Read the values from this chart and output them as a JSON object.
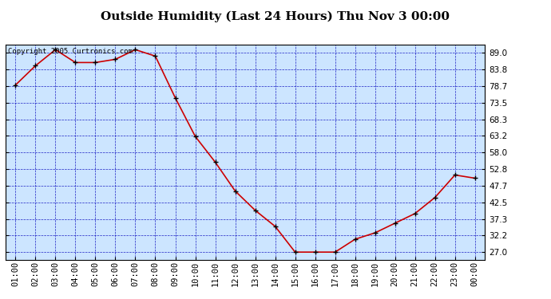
{
  "title": "Outside Humidity (Last 24 Hours) Thu Nov 3 00:00",
  "copyright": "Copyright 2005 Curtronics.com",
  "x_labels": [
    "01:00",
    "02:00",
    "03:00",
    "04:00",
    "05:00",
    "06:00",
    "07:00",
    "08:00",
    "09:00",
    "10:00",
    "11:00",
    "12:00",
    "13:00",
    "14:00",
    "15:00",
    "16:00",
    "17:00",
    "18:00",
    "19:00",
    "20:00",
    "21:00",
    "22:00",
    "23:00",
    "00:00"
  ],
  "y_values": [
    79,
    85,
    90,
    86,
    86,
    87,
    90,
    88,
    75,
    63,
    55,
    46,
    40,
    35,
    27,
    27,
    27,
    31,
    33,
    36,
    39,
    44,
    51,
    50
  ],
  "ylim": [
    24.5,
    91.5
  ],
  "yticks": [
    27.0,
    32.2,
    37.3,
    42.5,
    47.7,
    52.8,
    58.0,
    63.2,
    68.3,
    73.5,
    78.7,
    83.8,
    89.0
  ],
  "line_color": "#cc0000",
  "marker_color": "#000000",
  "bg_color": "#cce5ff",
  "grid_color": "#0000bb",
  "title_fontsize": 11,
  "tick_fontsize": 7.5,
  "copyright_fontsize": 6.5
}
